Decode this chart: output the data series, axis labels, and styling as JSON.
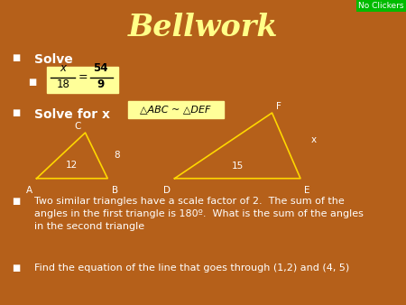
{
  "title": "Bellwork",
  "title_color": "#FFFF88",
  "title_fontsize": 24,
  "bg_color": "#B5601A",
  "text_color": "white",
  "bullet_color": "white",
  "triangle1": {
    "A": [
      0.09,
      0.415
    ],
    "B": [
      0.265,
      0.415
    ],
    "C": [
      0.21,
      0.565
    ],
    "color": "#FFD700"
  },
  "triangle2": {
    "D": [
      0.43,
      0.415
    ],
    "E": [
      0.74,
      0.415
    ],
    "F": [
      0.67,
      0.63
    ],
    "color": "#FFD700"
  },
  "fraction_box_color": "#FFFF99",
  "noclick_bg": "#00BB00",
  "noclick_text": "No Clickers",
  "noclick_color": "white",
  "bullet1": "Solve",
  "bullet2": "Solve for x",
  "bullet2_formula": "△ABC ~ △DEF",
  "bullet3": "Two similar triangles have a scale factor of 2.  The sum of the\nangles in the first triangle is 180º.  What is the sum of the angles\nin the second triangle",
  "bullet4": "Find the equation of the line that goes through (1,2) and (4, 5)"
}
